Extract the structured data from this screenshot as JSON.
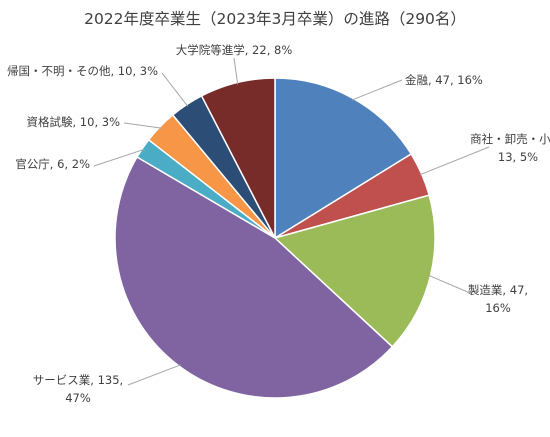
{
  "chart_data": {
    "type": "pie",
    "title": "2022年度卒業生（2023年3月卒業）の進路（290名）",
    "total": 290,
    "slices": [
      {
        "label": "金融",
        "value": 47,
        "percent": "16%",
        "color": "#4F81BD"
      },
      {
        "label": "商社・卸売・小売",
        "value": 13,
        "percent": "5%",
        "color": "#C0504D"
      },
      {
        "label": "製造業",
        "value": 47,
        "percent": "16%",
        "color": "#9BBB59"
      },
      {
        "label": "サービス業",
        "value": 135,
        "percent": "47%",
        "color": "#8064A2"
      },
      {
        "label": "官公庁",
        "value": 6,
        "percent": "2%",
        "color": "#4BACC6"
      },
      {
        "label": "資格試験",
        "value": 10,
        "percent": "3%",
        "color": "#F79646"
      },
      {
        "label": "帰国・不明・その他",
        "value": 10,
        "percent": "3%",
        "color": "#2C4D75"
      },
      {
        "label": "大学院等進学",
        "value": 22,
        "percent": "8%",
        "color": "#772C2A"
      }
    ],
    "start_angle": "12 o'clock",
    "direction": "clockwise",
    "data_labels": "outside with leader lines",
    "legend": "none"
  }
}
